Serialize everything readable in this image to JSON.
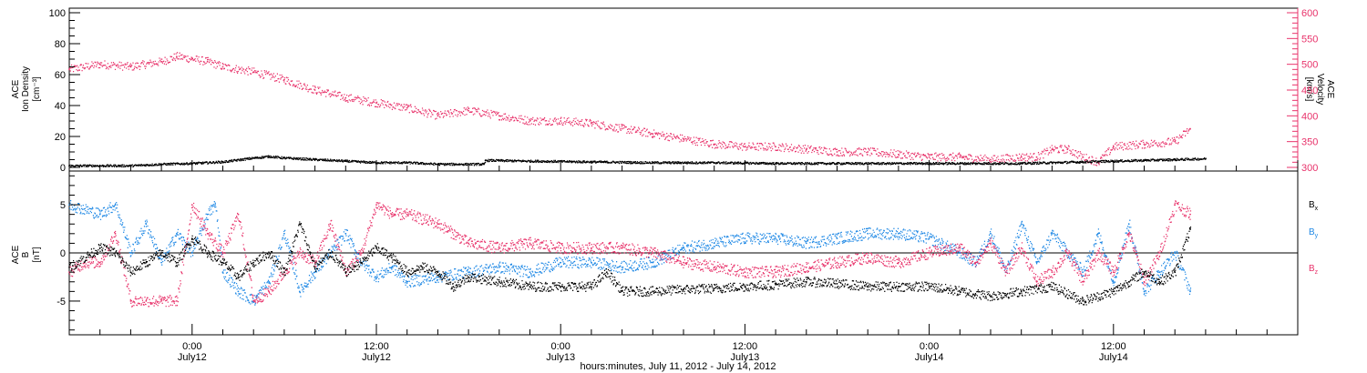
{
  "chart_data": [
    {
      "panel": "top",
      "type": "scatter",
      "xlabel": "hours:minutes, July 11, 2012 - July 14, 2012",
      "x_ticks": [
        {
          "hours": 24,
          "time": "0:00",
          "date": "July12"
        },
        {
          "hours": 36,
          "time": "12:00",
          "date": "July12"
        },
        {
          "hours": 48,
          "time": "0:00",
          "date": "July13"
        },
        {
          "hours": 60,
          "time": "12:00",
          "date": "July13"
        },
        {
          "hours": 72,
          "time": "0:00",
          "date": "July14"
        },
        {
          "hours": 84,
          "time": "12:00",
          "date": "July14"
        }
      ],
      "xlim_hours": [
        16,
        96
      ],
      "left_axis": {
        "label_lines": [
          "ACE",
          "Ion Density"
        ],
        "unit": "[cm⁻³]",
        "ylim": [
          0,
          100
        ],
        "ticks": [
          "0",
          "20",
          "40",
          "60",
          "80",
          "100"
        ]
      },
      "right_axis": {
        "label_lines": [
          "ACE",
          "Velocity"
        ],
        "unit": "[km/s]",
        "ylim": [
          300,
          600
        ],
        "ticks": [
          "300",
          "350",
          "400",
          "450",
          "500",
          "550",
          "600"
        ],
        "color": "#e8336b"
      },
      "series": [
        {
          "name": "density",
          "axis": "left",
          "color": "#000000",
          "x_hours": [
            16,
            18,
            20,
            22,
            24,
            26,
            28,
            29,
            30,
            32,
            34,
            36,
            38,
            40,
            43,
            43.1,
            46,
            50,
            54,
            58,
            62,
            66,
            70,
            74,
            78,
            80,
            82,
            84,
            86,
            88,
            90
          ],
          "values": [
            1,
            1,
            1,
            2,
            2.5,
            3.5,
            6,
            7,
            6,
            5,
            4,
            3,
            3,
            2,
            2,
            4.5,
            4,
            3.5,
            3,
            3,
            2.5,
            2.5,
            2.5,
            2.5,
            2.5,
            3,
            3.5,
            4,
            4.5,
            5,
            5.5
          ]
        },
        {
          "name": "velocity",
          "axis": "right",
          "color": "#e8336b",
          "x_hours": [
            16,
            18,
            20,
            22,
            23,
            24,
            25,
            26,
            28,
            30,
            32,
            34,
            36,
            38,
            40,
            42,
            44,
            46,
            48,
            50,
            52,
            54,
            56,
            58,
            60,
            62,
            64,
            66,
            68,
            70,
            72,
            74,
            76,
            78,
            79,
            80,
            81,
            82,
            83,
            84,
            86,
            88,
            89
          ],
          "values": [
            490,
            500,
            495,
            505,
            515,
            510,
            505,
            495,
            485,
            470,
            450,
            435,
            425,
            415,
            400,
            410,
            400,
            390,
            390,
            385,
            375,
            365,
            355,
            345,
            340,
            340,
            335,
            330,
            330,
            325,
            320,
            320,
            315,
            320,
            320,
            335,
            335,
            320,
            310,
            340,
            345,
            350,
            375
          ]
        }
      ],
      "grid": false
    },
    {
      "panel": "bottom",
      "type": "scatter",
      "left_axis": {
        "label_lines": [
          "ACE",
          "B"
        ],
        "unit": "[nT]",
        "ylim": [
          -8.5,
          8.5
        ],
        "ticks": [
          "-5",
          "0",
          "5"
        ]
      },
      "zero_line": true,
      "series": [
        {
          "name": "Bx",
          "subscript": "x",
          "color": "#000000",
          "x_hours": [
            16,
            18,
            19,
            20,
            21,
            22,
            23,
            24,
            25,
            26,
            27,
            28,
            29,
            30,
            31,
            32,
            33,
            34,
            35,
            36,
            37,
            38,
            39,
            40,
            41,
            42,
            44,
            46,
            48,
            50,
            51,
            52,
            54,
            56,
            58,
            60,
            62,
            64,
            66,
            68,
            70,
            72,
            74,
            76,
            78,
            80,
            82,
            84,
            85,
            86,
            87,
            88,
            89
          ],
          "values": [
            -1.5,
            0.5,
            0,
            -2,
            -1,
            0,
            -1,
            1.5,
            0,
            -1,
            -2.5,
            -1,
            0,
            -2,
            3,
            -1.5,
            0,
            -2,
            -1,
            0.5,
            -0.5,
            -2,
            -1.5,
            -2,
            -3.5,
            -2.5,
            -3,
            -3.5,
            -3.5,
            -3.5,
            -2,
            -4,
            -4,
            -3.8,
            -3.7,
            -3.5,
            -3.3,
            -3,
            -3.2,
            -3.5,
            -3.5,
            -3.5,
            -4,
            -4.5,
            -4,
            -3.5,
            -5,
            -4,
            -3,
            -2,
            -3,
            -2,
            2.5
          ]
        },
        {
          "name": "By",
          "subscript": "y",
          "color": "#1e88e5",
          "x_hours": [
            16,
            18,
            19,
            20,
            21,
            22,
            23,
            24,
            25,
            25.5,
            26,
            27,
            28,
            29,
            30,
            31,
            32,
            33,
            34,
            35,
            36,
            37,
            38,
            40,
            42,
            44,
            46,
            48,
            50,
            52,
            54,
            56,
            58,
            60,
            62,
            64,
            66,
            68,
            70,
            72,
            74,
            75,
            76,
            77,
            78,
            79,
            80,
            81,
            82,
            83,
            84,
            85,
            86,
            87,
            88,
            89
          ],
          "values": [
            5,
            4,
            5,
            0,
            3,
            -1,
            2,
            0,
            4,
            5,
            -2,
            -4,
            -5,
            -3,
            2,
            -4,
            -2,
            0,
            2,
            -1,
            -2.5,
            -1.5,
            -3,
            -2.5,
            -2,
            -1.5,
            -2,
            -1,
            -1,
            -1.5,
            -1,
            0.5,
            1,
            1.5,
            1.5,
            1,
            1.5,
            2,
            2,
            1.5,
            0,
            -1,
            2,
            -2,
            3,
            -1,
            2,
            0,
            -2,
            2,
            -3,
            3,
            -4,
            -2,
            0,
            -4
          ]
        },
        {
          "name": "Bz",
          "subscript": "z",
          "color": "#e8336b",
          "x_hours": [
            16,
            17,
            18,
            19,
            20,
            21,
            22,
            23,
            24,
            25,
            26,
            27,
            28,
            29,
            30,
            31,
            32,
            33,
            34,
            35,
            36,
            37,
            38,
            40,
            42,
            44,
            46,
            48,
            50,
            52,
            54,
            56,
            58,
            60,
            62,
            64,
            66,
            68,
            70,
            72,
            74,
            75,
            76,
            77,
            78,
            79,
            80,
            81,
            82,
            83,
            84,
            85,
            86,
            87,
            88,
            89
          ],
          "values": [
            -2,
            -1,
            -1,
            2,
            -5,
            -5,
            -5,
            -5,
            5,
            2,
            0,
            4,
            -5,
            -4,
            -2,
            0,
            -1,
            3,
            -2,
            0,
            5,
            4,
            4,
            3,
            1,
            0.5,
            1,
            0.5,
            0.5,
            0.5,
            0,
            -1,
            -1.5,
            -2,
            -2,
            -1.5,
            -1,
            -0.5,
            -1,
            0,
            0.5,
            -1,
            1,
            -2,
            0.5,
            -3,
            -2,
            0,
            -3,
            0,
            -2,
            2,
            -3,
            0,
            5,
            4
          ]
        }
      ]
    }
  ]
}
